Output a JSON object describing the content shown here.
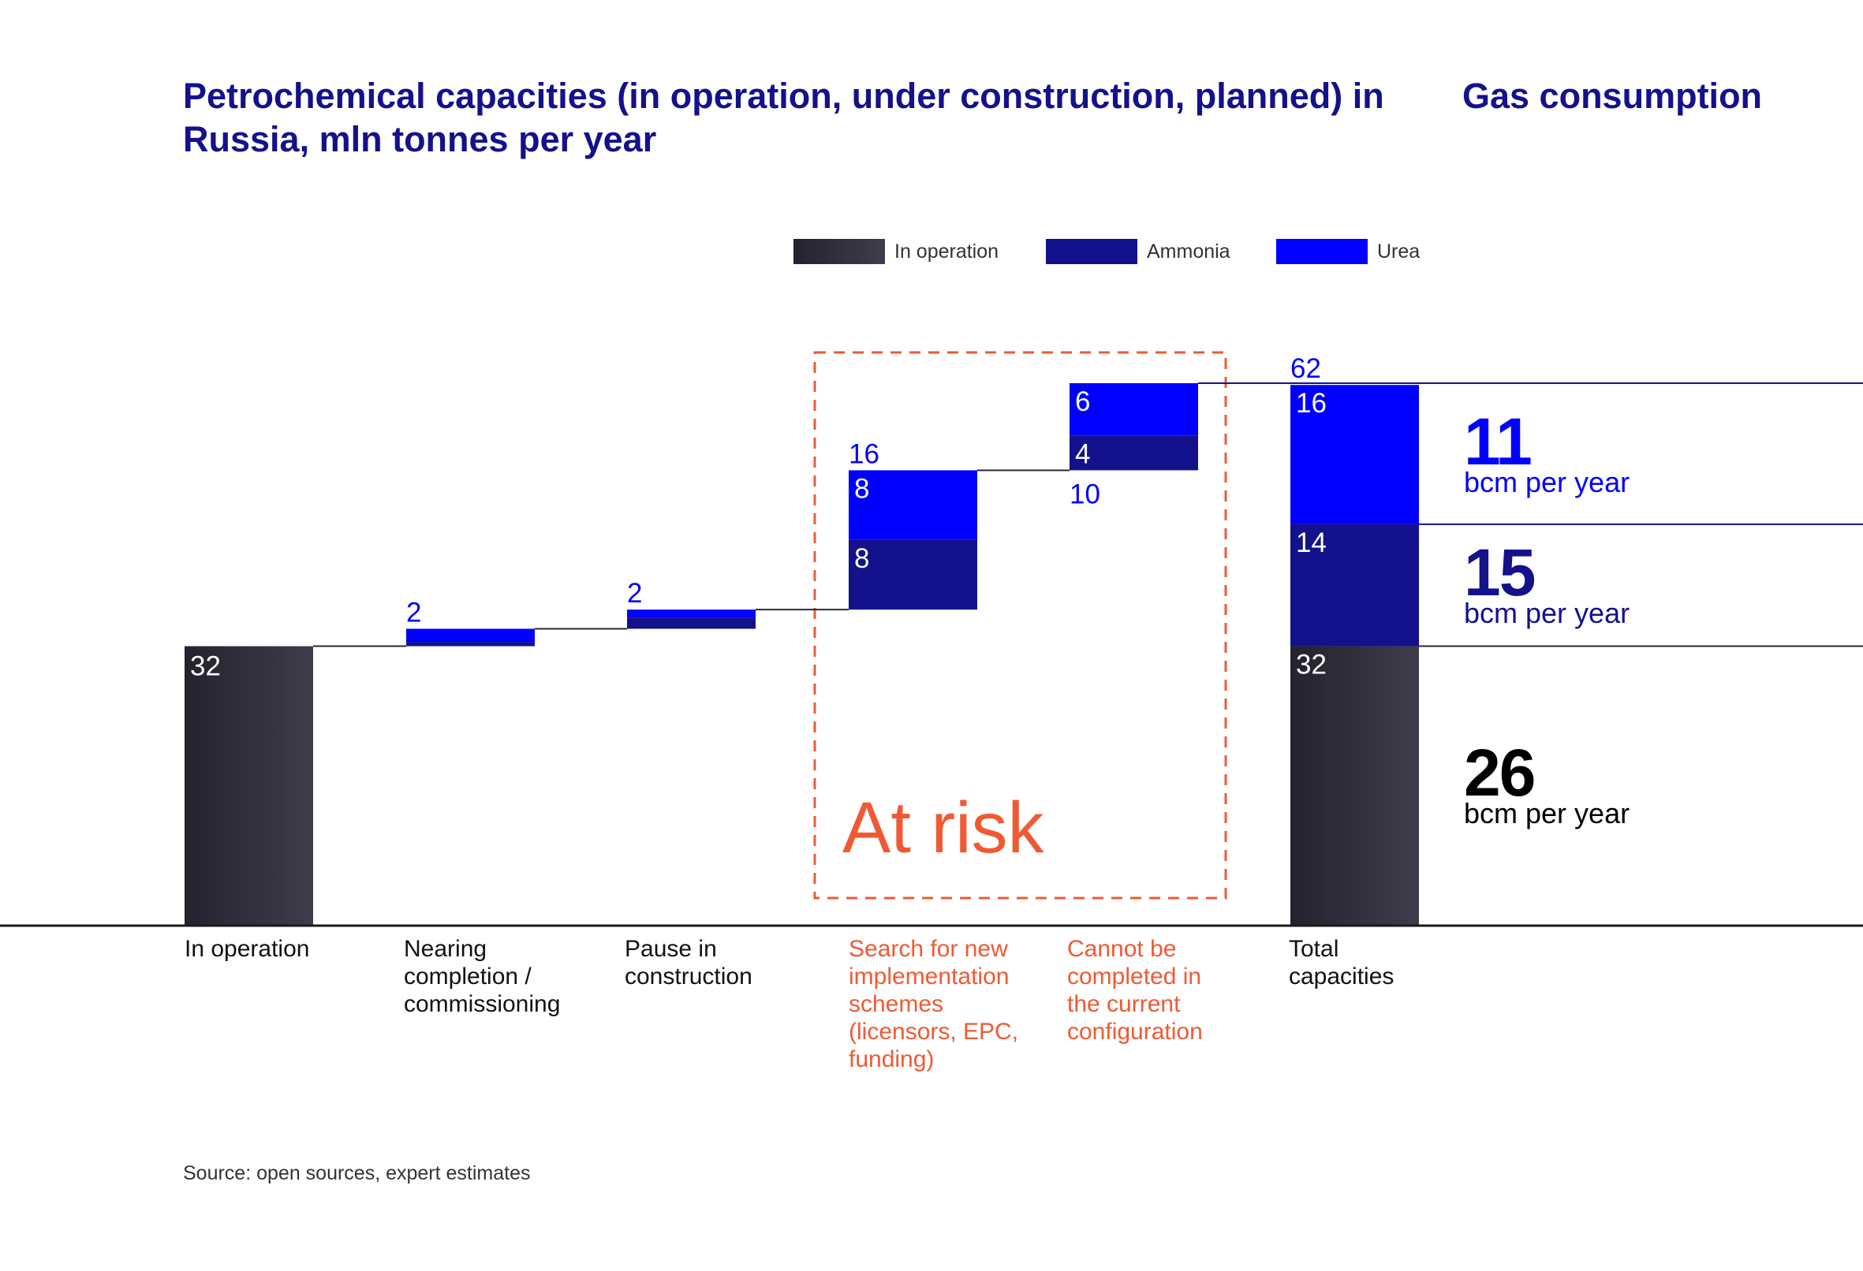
{
  "title_main": "Petrochemical capacities (in operation, under construction, planned) in Russia, mln tonnes per year",
  "title_gas": "Gas consumption",
  "legend": [
    {
      "label": "In operation",
      "color": "#2a2838"
    },
    {
      "label": "Ammonia",
      "color": "#14118c"
    },
    {
      "label": "Urea",
      "color": "#0000ff"
    }
  ],
  "at_risk_label": "At risk",
  "categories": [
    {
      "label": "In operation",
      "risk": false
    },
    {
      "label": "Nearing\ncompletion /\ncommissioning",
      "risk": false
    },
    {
      "label": "Pause in\nconstruction",
      "risk": false
    },
    {
      "label": "Search for new\nimplementation\nschemes\n(licensors, EPC,\nfunding)",
      "risk": true
    },
    {
      "label": "Cannot be\ncompleted in\nthe current\nconfiguration",
      "risk": true
    },
    {
      "label": "Total\ncapacities",
      "risk": false
    }
  ],
  "gas_consumption": [
    {
      "value": "11",
      "unit": "bcm per year",
      "color": "#0000ff"
    },
    {
      "value": "15",
      "unit": "bcm per year",
      "color": "#14118c"
    },
    {
      "value": "26",
      "unit": "bcm per year",
      "color": "#000000"
    }
  ],
  "source": "Source: open sources, expert estimates",
  "chart_data": {
    "type": "bar",
    "subtype": "waterfall",
    "categories": [
      "In operation",
      "Nearing completion / commissioning",
      "Pause in construction",
      "Search for new implementation schemes (licensors, EPC, funding)",
      "Cannot be completed in the current configuration",
      "Total capacities"
    ],
    "series": [
      {
        "name": "In operation",
        "values": [
          32,
          0,
          0,
          0,
          0,
          32
        ]
      },
      {
        "name": "Ammonia",
        "values": [
          0,
          0.5,
          1.3,
          8,
          4,
          14
        ]
      },
      {
        "name": "Urea",
        "values": [
          0,
          1.5,
          0.9,
          8,
          6,
          16
        ]
      }
    ],
    "bases": [
      0,
      32,
      34,
      36.2,
      52.2,
      0
    ],
    "labels": {
      "in_operation": "32",
      "nearing_total": "2",
      "pause_total": "2",
      "search_total": "16",
      "search_urea": "8",
      "search_ammonia": "8",
      "cannot_urea": "6",
      "cannot_ammonia": "4",
      "cannot_total": "10",
      "total": "62",
      "total_urea": "16",
      "total_ammonia": "14",
      "total_operation": "32"
    },
    "ylim": [
      0,
      62.2
    ],
    "legend_position": "top-right"
  }
}
